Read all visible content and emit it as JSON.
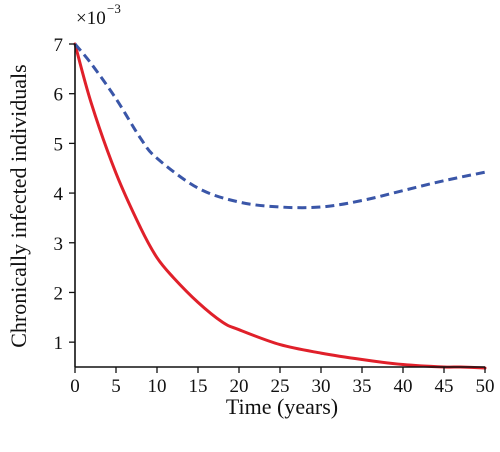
{
  "chart_data": {
    "type": "line",
    "title": "",
    "xlabel": "Time (years)",
    "ylabel": "Chronically infected individuals",
    "y_multiplier": {
      "base": "×10",
      "exponent": "−3"
    },
    "xlim": [
      0,
      50
    ],
    "ylim": [
      0.5,
      7
    ],
    "x_ticks": [
      0,
      5,
      10,
      15,
      20,
      25,
      30,
      35,
      40,
      45,
      50
    ],
    "y_ticks": [
      1,
      2,
      3,
      4,
      5,
      6,
      7
    ],
    "grid": false,
    "series": [
      {
        "color": "#e0202a",
        "style": "solid",
        "x": [
          0,
          2,
          5,
          8,
          10,
          12,
          15,
          18,
          20,
          25,
          30,
          35,
          40,
          45,
          47,
          50
        ],
        "values": [
          7.0,
          5.8,
          4.4,
          3.3,
          2.7,
          2.3,
          1.8,
          1.4,
          1.25,
          0.95,
          0.78,
          0.65,
          0.55,
          0.5,
          0.5,
          0.48
        ]
      },
      {
        "color": "#3a56a8",
        "style": "dashed",
        "x": [
          0,
          2,
          5,
          8,
          10,
          15,
          20,
          25,
          30,
          35,
          40,
          45,
          50
        ],
        "values": [
          7.0,
          6.6,
          5.9,
          5.1,
          4.7,
          4.1,
          3.82,
          3.72,
          3.72,
          3.85,
          4.05,
          4.25,
          4.42
        ]
      }
    ]
  }
}
